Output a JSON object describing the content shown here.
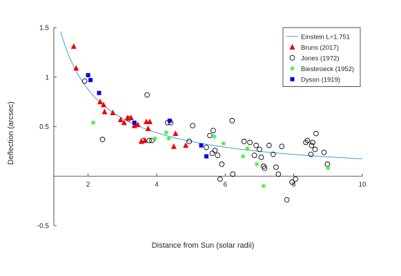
{
  "chart_data": {
    "type": "scatter",
    "title": "",
    "xlabel": "Distance from Sun (solar radii)",
    "ylabel": "Deflection (arcsec)",
    "xlim": [
      1,
      10
    ],
    "ylim": [
      -0.5,
      1.5
    ],
    "x_ticks": [
      2,
      4,
      6,
      8,
      10
    ],
    "y_ticks": [
      -0.5,
      0.5,
      1,
      1.5
    ],
    "y_tick_labels": [
      "-0.5",
      "0.5",
      "1",
      "1.5"
    ],
    "grid": false,
    "legend_position": "top-right",
    "curve": {
      "name": "Einstein L=1.751",
      "type": "line",
      "color": "#3a9fd0",
      "coefficient": 1.751,
      "x_range": [
        1.2,
        10
      ]
    },
    "series": [
      {
        "name": "Bruns (2017)",
        "marker": "filled-triangle",
        "color": "#ee0000",
        "x": [
          1.58,
          1.65,
          2.35,
          2.45,
          2.48,
          2.72,
          2.95,
          3.05,
          3.15,
          3.25,
          3.35,
          3.45,
          3.55,
          3.65,
          3.7,
          3.75,
          3.8,
          4.5,
          4.55,
          4.85
        ],
        "y": [
          1.31,
          1.09,
          0.75,
          0.72,
          0.65,
          0.64,
          0.57,
          0.54,
          0.59,
          0.59,
          0.51,
          0.52,
          0.35,
          0.36,
          0.55,
          0.48,
          0.55,
          0.3,
          0.43,
          0.31
        ]
      },
      {
        "name": "Jones (1972)",
        "marker": "open-circle",
        "color": "#000000",
        "x": [
          1.9,
          2.42,
          3.18,
          3.62,
          3.72,
          3.78,
          3.86,
          4.32,
          4.41,
          4.95,
          5.05,
          5.45,
          5.55,
          5.62,
          5.65,
          5.7,
          5.78,
          5.85,
          5.9,
          6.2,
          6.22,
          6.55,
          6.72,
          6.85,
          6.9,
          7.0,
          7.05,
          7.12,
          7.15,
          7.28,
          7.4,
          7.48,
          7.55,
          7.65,
          7.8,
          7.95,
          8.05,
          8.35,
          8.4,
          8.5,
          8.52,
          8.55,
          8.62,
          8.65,
          8.88,
          8.98
        ],
        "y": [
          0.96,
          0.37,
          0.58,
          0.36,
          0.82,
          0.36,
          0.36,
          0.54,
          0.54,
          0.35,
          0.51,
          0.29,
          0.41,
          0.23,
          0.46,
          0.26,
          0.21,
          -0.03,
          0.12,
          0.56,
          0.02,
          0.35,
          0.34,
          0.21,
          0.31,
          0.27,
          0.19,
          0.1,
          0.08,
          0.31,
          0.22,
          0.09,
          0.02,
          0.3,
          -0.24,
          -0.06,
          -0.03,
          0.34,
          0.36,
          0.22,
          0.31,
          0.34,
          0.27,
          0.43,
          0.24,
          0.12
        ]
      },
      {
        "name": "Biesbroeck (1952)",
        "marker": "asterisk",
        "color": "#33ee33",
        "x": [
          2.15,
          3.95,
          4.28,
          4.35,
          5.68,
          5.95,
          6.52,
          6.65,
          6.92,
          7.12,
          9.0
        ],
        "y": [
          0.54,
          0.38,
          0.44,
          0.38,
          0.4,
          0.33,
          0.2,
          0.28,
          0.12,
          -0.1,
          0.08
        ]
      },
      {
        "name": "Dyson (1919)",
        "marker": "filled-square",
        "color": "#0000ee",
        "x": [
          2.0,
          2.07,
          2.32,
          3.35,
          4.38,
          5.3,
          5.45
        ],
        "y": [
          1.02,
          0.97,
          0.84,
          0.54,
          0.56,
          0.31,
          0.2
        ]
      }
    ]
  }
}
